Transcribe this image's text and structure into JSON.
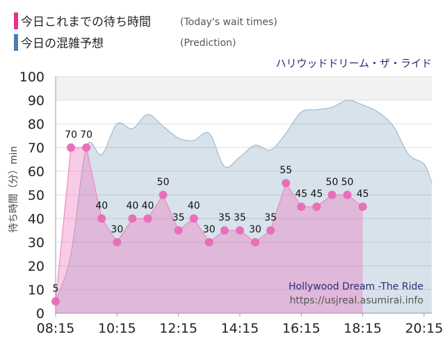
{
  "legend": {
    "actual_label": "今日これまでの待ち時間",
    "actual_sub": "(Today's wait times)",
    "actual_color": "#e8308c",
    "prediction_label": "今日の混雑予想",
    "prediction_sub": "(Prediction)",
    "prediction_color": "#4a7fae"
  },
  "ride_name_jp": "ハリウッドドリーム・ザ・ライド",
  "ride_name_en": "Hollywood Dream -The Ride",
  "site_url": "https://usjreal.asumirai.info",
  "chart_data": {
    "type": "area",
    "ylabel": "待ち時間（分）min",
    "ylim": [
      0,
      100
    ],
    "y_ticks": [
      "0",
      "10",
      "20",
      "30",
      "40",
      "50",
      "60",
      "70",
      "80",
      "90",
      "100"
    ],
    "x_tick_labels": [
      "08:15",
      "10:15",
      "12:15",
      "14:15",
      "16:15",
      "18:15",
      "20:15"
    ],
    "x_tick_minutes": [
      495,
      615,
      735,
      855,
      975,
      1095,
      1215
    ],
    "xlim_minutes": [
      495,
      1230
    ],
    "series": [
      {
        "name": "今日これまでの待ち時間",
        "x_minutes": [
          495,
          525,
          555,
          585,
          615,
          645,
          675,
          705,
          735,
          765,
          795,
          825,
          855,
          885,
          915,
          945,
          975,
          1005,
          1035,
          1065,
          1095
        ],
        "values": [
          5,
          70,
          70,
          40,
          30,
          40,
          40,
          50,
          35,
          40,
          30,
          35,
          35,
          30,
          35,
          55,
          45,
          45,
          50,
          50,
          45
        ]
      },
      {
        "name": "今日の混雑予想",
        "x_minutes": [
          495,
          525,
          555,
          585,
          615,
          645,
          675,
          705,
          735,
          765,
          795,
          825,
          855,
          885,
          915,
          945,
          975,
          1005,
          1035,
          1065,
          1095,
          1125,
          1155,
          1185,
          1215,
          1230
        ],
        "values": [
          5,
          25,
          70,
          67,
          80,
          78,
          84,
          79,
          74,
          73,
          76,
          62,
          66,
          71,
          69,
          76,
          85,
          86,
          87,
          90,
          88,
          85,
          79,
          67,
          63,
          55
        ]
      }
    ]
  }
}
